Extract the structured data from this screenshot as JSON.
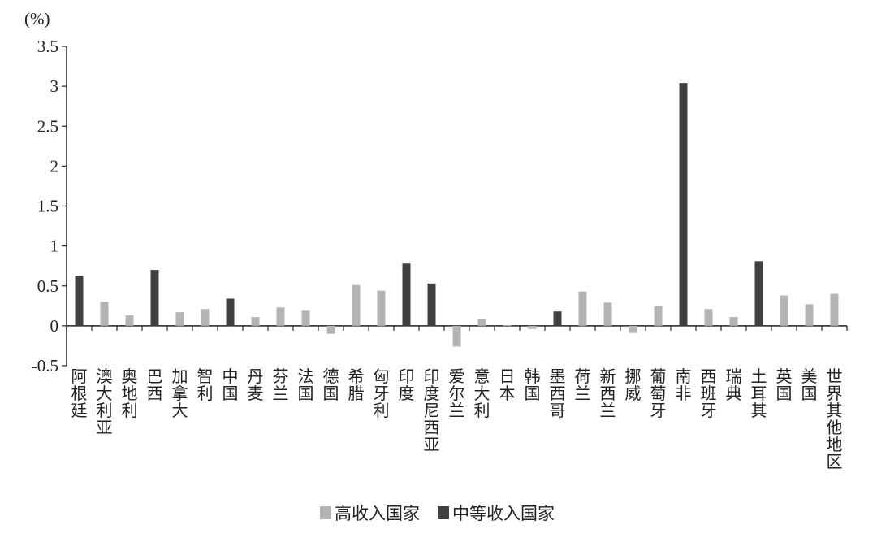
{
  "chart_data": {
    "type": "bar",
    "unit_label": "(%)",
    "categories": [
      "阿根廷",
      "澳大利亚",
      "奥地利",
      "巴西",
      "加拿大",
      "智利",
      "中国",
      "丹麦",
      "芬兰",
      "法国",
      "德国",
      "希腊",
      "匈牙利",
      "印度",
      "印度尼西亚",
      "爱尔兰",
      "意大利",
      "日本",
      "韩国",
      "墨西哥",
      "荷兰",
      "新西兰",
      "挪威",
      "葡萄牙",
      "南非",
      "西班牙",
      "瑞典",
      "土耳其",
      "英国",
      "美国",
      "世界其他地区"
    ],
    "values": [
      0.63,
      0.3,
      0.13,
      0.7,
      0.17,
      0.21,
      0.34,
      0.11,
      0.23,
      0.19,
      -0.1,
      0.51,
      0.44,
      0.78,
      0.53,
      -0.26,
      0.09,
      0.01,
      -0.04,
      0.18,
      0.43,
      0.29,
      -0.09,
      0.25,
      3.04,
      0.21,
      0.11,
      0.81,
      0.38,
      0.27,
      0.4
    ],
    "group": [
      "middle",
      "high",
      "high",
      "middle",
      "high",
      "high",
      "middle",
      "high",
      "high",
      "high",
      "high",
      "high",
      "high",
      "middle",
      "middle",
      "high",
      "high",
      "high",
      "high",
      "middle",
      "high",
      "high",
      "high",
      "high",
      "middle",
      "high",
      "high",
      "middle",
      "high",
      "high",
      "high"
    ],
    "legend": [
      {
        "key": "high",
        "name": "高收入国家",
        "color": "#b4b4b4"
      },
      {
        "key": "middle",
        "name": "中等收入国家",
        "color": "#404040"
      }
    ],
    "y_ticks": [
      "-0.5",
      "0",
      "0.5",
      "1",
      "1.5",
      "2",
      "2.5",
      "3",
      "3.5"
    ],
    "ylim": [
      -0.5,
      3.5
    ],
    "grid": false,
    "legend_position": "bottom-center"
  }
}
